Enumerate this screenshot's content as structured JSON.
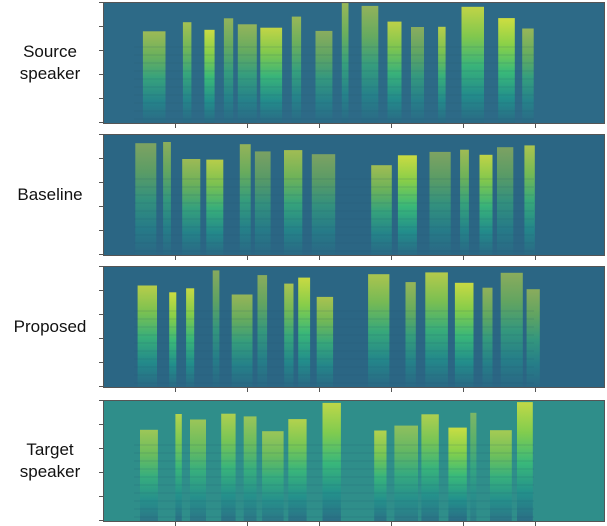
{
  "figure": {
    "panels": [
      {
        "id": "source",
        "label": "Source\nspeaker",
        "palette": {
          "low": "#2d6a87",
          "high": "#d8e53c"
        }
      },
      {
        "id": "baseline",
        "label": "Baseline",
        "palette": {
          "low": "#2b6684",
          "high": "#cfe03a"
        }
      },
      {
        "id": "proposed",
        "label": "Proposed",
        "palette": {
          "low": "#2b6684",
          "high": "#cfe03a"
        }
      },
      {
        "id": "target",
        "label": "Target\nspeaker",
        "palette": {
          "low": "#2f8e8a",
          "high": "#e5e83a"
        }
      }
    ],
    "colormap": [
      "#2b6684",
      "#21918c",
      "#3bbf77",
      "#8fd744",
      "#d8e53c"
    ]
  }
}
